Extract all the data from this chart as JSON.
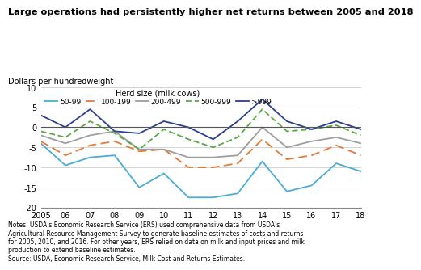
{
  "title": "Large operations had persistently higher net returns between 2005 and 2018",
  "ylabel": "Dollars per hundredweight",
  "years": [
    2005,
    2006,
    2007,
    2008,
    2009,
    2010,
    2011,
    2012,
    2013,
    2014,
    2015,
    2016,
    2017,
    2018
  ],
  "series": {
    "50-99": [
      -4.0,
      -9.5,
      -7.5,
      -7.0,
      -15.0,
      -11.5,
      -17.5,
      -17.5,
      -16.5,
      -8.5,
      -16.0,
      -14.5,
      -9.0,
      -11.0
    ],
    "100-199": [
      -3.5,
      -7.0,
      -4.5,
      -3.5,
      -6.0,
      -5.5,
      -10.0,
      -10.0,
      -9.0,
      -3.0,
      -8.0,
      -7.0,
      -4.5,
      -7.0
    ],
    "200-499": [
      -2.0,
      -4.0,
      -2.0,
      -1.0,
      -5.5,
      -5.5,
      -7.5,
      -7.5,
      -7.0,
      0.0,
      -5.0,
      -3.5,
      -2.5,
      -4.0
    ],
    "500-999": [
      -1.0,
      -2.5,
      1.5,
      -1.5,
      -5.5,
      -0.5,
      -3.0,
      -5.0,
      -2.5,
      4.5,
      -1.0,
      -0.5,
      0.5,
      -2.0
    ],
    ">999": [
      3.0,
      0.0,
      4.5,
      -1.0,
      -1.5,
      1.5,
      0.0,
      -3.0,
      1.5,
      7.0,
      1.5,
      -0.5,
      1.5,
      -0.5
    ]
  },
  "colors": {
    "50-99": "#4BACD6",
    "100-199": "#E07B39",
    "200-499": "#9E9E9E",
    "500-999": "#5BA843",
    ">999": "#2B3F91"
  },
  "styles": {
    "50-99": {
      "dashes": null
    },
    "100-199": {
      "dashes": [
        6,
        3
      ]
    },
    "200-499": {
      "dashes": null
    },
    "500-999": {
      "dashes": [
        4,
        2
      ]
    },
    ">999": {
      "dashes": null
    }
  },
  "ylim": [
    -20,
    10
  ],
  "yticks": [
    -20,
    -15,
    -10,
    -5,
    0,
    5,
    10
  ],
  "xtick_labels": [
    "2005",
    "06",
    "07",
    "08",
    "09",
    "10",
    "11",
    "12",
    "13",
    "14",
    "15",
    "16",
    "17",
    "18"
  ],
  "legend_title": "Herd size (milk cows)",
  "notes_line1": "Notes: USDA's Economic Research Service (ERS) used comprehensive data from USDA's",
  "notes_line2": "Agricultural Resource Management Survey to generate baseline estimates of costs and returns",
  "notes_line3": "for 2005, 2010, and 2016. For other years, ERS relied on data on milk and input prices and milk",
  "notes_line4": "production to extend baseline estimates.",
  "notes_line5": "Source: USDA, Economic Research Service, Milk Cost and Returns Estimates."
}
